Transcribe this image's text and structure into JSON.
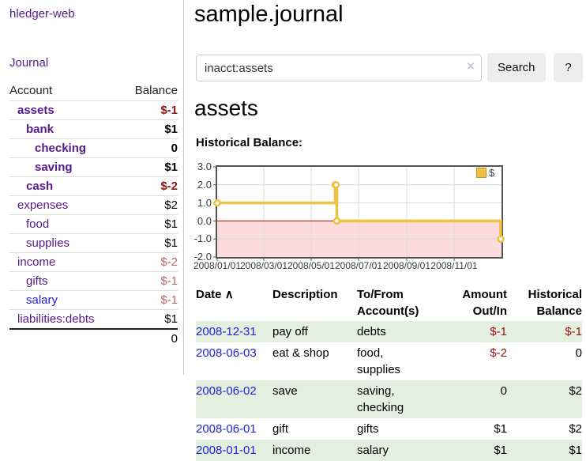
{
  "colors": {
    "link_purple": "#551a8b",
    "link_blue": "#2323d6",
    "negative": "#941414",
    "negative_faded": "#b26b6b",
    "row_stripe_green": "#e3efdf",
    "button_gray": "#ededed",
    "chart_line_gold": "#edc240",
    "chart_negative_region": "#fbdbdb",
    "chart_zero_line": "#9c1212"
  },
  "sidebar": {
    "brand": "hledger-web",
    "nav_journal": "Journal",
    "table": {
      "account_header": "Account",
      "balance_header": "Balance",
      "rows": [
        {
          "name": "assets",
          "balance": "$-1",
          "depth": 1,
          "bold": true,
          "balance_style": "negative"
        },
        {
          "name": "bank",
          "balance": "$1",
          "depth": 2,
          "bold": true,
          "balance_style": "normal"
        },
        {
          "name": "checking",
          "balance": "0",
          "depth": 3,
          "bold": true,
          "balance_style": "normal"
        },
        {
          "name": "saving",
          "balance": "$1",
          "depth": 3,
          "bold": true,
          "balance_style": "normal"
        },
        {
          "name": "cash",
          "balance": "$-2",
          "depth": 2,
          "bold": true,
          "balance_style": "negative"
        },
        {
          "name": "expenses",
          "balance": "$2",
          "depth": 1,
          "bold": false,
          "balance_style": "normal"
        },
        {
          "name": "food",
          "balance": "$1",
          "depth": 2,
          "bold": false,
          "balance_style": "normal"
        },
        {
          "name": "supplies",
          "balance": "$1",
          "depth": 2,
          "bold": false,
          "balance_style": "normal"
        },
        {
          "name": "income",
          "balance": "$-2",
          "depth": 1,
          "bold": false,
          "balance_style": "negative_faded"
        },
        {
          "name": "gifts",
          "balance": "$-1",
          "depth": 2,
          "bold": false,
          "balance_style": "negative_faded"
        },
        {
          "name": "salary",
          "balance": "$-1",
          "depth": 2,
          "bold": false,
          "balance_style": "negative_faded",
          "link_color": "blue"
        },
        {
          "name": "liabilities:debts",
          "balance": "$1",
          "depth": 1,
          "bold": false,
          "balance_style": "normal"
        }
      ],
      "total": "0"
    }
  },
  "header": {
    "title": "sample.journal"
  },
  "search": {
    "value": "inacct:assets",
    "clear_icon": "×",
    "search_button": "Search",
    "help_button": "?"
  },
  "account_page": {
    "heading": "assets",
    "chart_label": "Historical Balance:"
  },
  "chart_data": {
    "type": "line",
    "title": "Historical Balance",
    "step": true,
    "series": [
      {
        "name": "$",
        "points": [
          [
            "2008-01-01",
            1
          ],
          [
            "2008-06-01",
            2
          ],
          [
            "2008-06-02",
            2
          ],
          [
            "2008-06-03",
            0
          ],
          [
            "2008-12-31",
            -1
          ]
        ]
      }
    ],
    "ylim": [
      -2,
      3
    ],
    "yticks": [
      "3.0",
      "2.0",
      "1.0",
      "0.0",
      "-1.0",
      "-2.0"
    ],
    "xticks": [
      "2008/01/01",
      "2008/03/01",
      "2008/05/01",
      "2008/07/01",
      "2008/09/01",
      "2008/11/01"
    ],
    "x_range": [
      "2008-01-01",
      "2009-01-01"
    ],
    "grid": true,
    "legend_position": "top-right",
    "legend_label": "$",
    "line_color": "#edc240",
    "negative_fill": "#fbdbdb",
    "zero_line_color": "#9c1212"
  },
  "register": {
    "columns": {
      "date": "Date",
      "sort_icon": "∧",
      "description": "Description",
      "accounts_line1": "To/From",
      "accounts_line2": "Account(s)",
      "amount_line1": "Amount",
      "amount_line2": "Out/In",
      "balance_line1": "Historical",
      "balance_line2": "Balance"
    },
    "rows": [
      {
        "date": "2008-12-31",
        "description": "pay off",
        "accounts": "debts",
        "amount": "$-1",
        "amount_style": "negative",
        "balance": "$-1",
        "balance_style": "negative"
      },
      {
        "date": "2008-06-03",
        "description": "eat & shop",
        "accounts": "food, supplies",
        "amount": "$-2",
        "amount_style": "negative",
        "balance": "0",
        "balance_style": "normal"
      },
      {
        "date": "2008-06-02",
        "description": "save",
        "accounts": "saving, checking",
        "amount": "0",
        "amount_style": "normal",
        "balance": "$2",
        "balance_style": "normal"
      },
      {
        "date": "2008-06-01",
        "description": "gift",
        "accounts": "gifts",
        "amount": "$1",
        "amount_style": "normal",
        "balance": "$2",
        "balance_style": "normal"
      },
      {
        "date": "2008-01-01",
        "description": "income",
        "accounts": "salary",
        "amount": "$1",
        "amount_style": "normal",
        "balance": "$1",
        "balance_style": "normal"
      }
    ]
  }
}
